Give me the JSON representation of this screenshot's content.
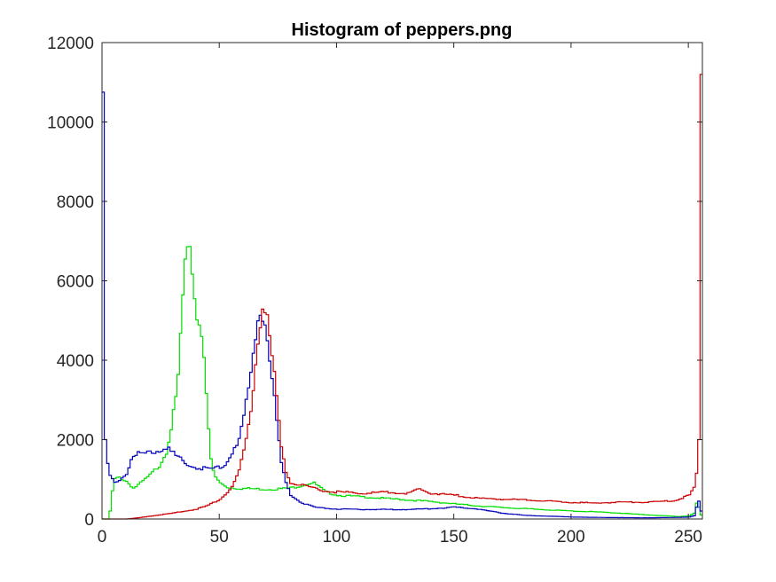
{
  "chart_data": {
    "type": "line",
    "title": "Histogram of peppers.png",
    "xlabel": "",
    "ylabel": "",
    "xlim": [
      0,
      256
    ],
    "ylim": [
      0,
      12000
    ],
    "x_ticks": [
      0,
      50,
      100,
      150,
      200,
      250
    ],
    "y_ticks": [
      0,
      2000,
      4000,
      6000,
      8000,
      10000,
      12000
    ],
    "x_tick_labels": [
      "0",
      "50",
      "100",
      "150",
      "200",
      "250"
    ],
    "y_tick_labels": [
      "0",
      "2000",
      "4000",
      "6000",
      "8000",
      "10000",
      "12000"
    ],
    "grid": false,
    "legend": "none",
    "series": [
      {
        "color": "#00dd00",
        "x": [
          0,
          2,
          3,
          4,
          5,
          7,
          10,
          13,
          16,
          20,
          24,
          27,
          29,
          31,
          32,
          33,
          34,
          35,
          36,
          37,
          38,
          39,
          40,
          41,
          42,
          43,
          44,
          45,
          46,
          47,
          48,
          50,
          53,
          56,
          60,
          65,
          70,
          75,
          80,
          85,
          88,
          90,
          92,
          95,
          100,
          110,
          120,
          130,
          140,
          150,
          160,
          170,
          180,
          190,
          200,
          210,
          220,
          230,
          240,
          245,
          250,
          252,
          253,
          254,
          255
        ],
        "y": [
          0,
          0,
          200,
          700,
          1000,
          1050,
          950,
          780,
          900,
          1100,
          1350,
          1700,
          2300,
          3000,
          3600,
          4600,
          5600,
          6400,
          6600,
          6620,
          6300,
          5600,
          5100,
          4900,
          4700,
          4200,
          3200,
          2200,
          1500,
          1200,
          1050,
          900,
          800,
          780,
          770,
          760,
          750,
          760,
          780,
          850,
          900,
          900,
          820,
          680,
          600,
          560,
          520,
          480,
          440,
          380,
          330,
          290,
          260,
          230,
          200,
          180,
          150,
          110,
          80,
          60,
          80,
          150,
          400,
          300,
          100
        ]
      },
      {
        "color": "#0000bb",
        "x": [
          0,
          1,
          2,
          3,
          5,
          7,
          10,
          12,
          15,
          20,
          25,
          27,
          30,
          35,
          40,
          45,
          50,
          52,
          55,
          58,
          60,
          62,
          63,
          64,
          65,
          66,
          67,
          68,
          69,
          70,
          71,
          72,
          73,
          74,
          75,
          76,
          78,
          80,
          85,
          90,
          95,
          100,
          110,
          120,
          130,
          140,
          150,
          160,
          170,
          180,
          190,
          200,
          210,
          220,
          230,
          240,
          250,
          252,
          253,
          254,
          255
        ],
        "y": [
          10750,
          2000,
          1400,
          1100,
          900,
          1000,
          1150,
          1500,
          1650,
          1650,
          1750,
          1800,
          1650,
          1400,
          1300,
          1250,
          1300,
          1400,
          1700,
          2000,
          2600,
          3200,
          3600,
          4100,
          4600,
          5000,
          5200,
          5100,
          4900,
          4500,
          4000,
          3500,
          3000,
          2400,
          1900,
          1400,
          900,
          600,
          400,
          300,
          270,
          250,
          240,
          240,
          240,
          260,
          300,
          250,
          150,
          90,
          70,
          50,
          40,
          35,
          30,
          35,
          50,
          80,
          300,
          450,
          200
        ]
      },
      {
        "color": "#cc0000",
        "x": [
          0,
          10,
          15,
          20,
          25,
          30,
          35,
          40,
          45,
          50,
          55,
          58,
          60,
          62,
          63,
          64,
          65,
          66,
          67,
          68,
          69,
          70,
          71,
          72,
          73,
          74,
          75,
          76,
          78,
          80,
          85,
          90,
          95,
          100,
          110,
          120,
          130,
          135,
          140,
          150,
          160,
          170,
          180,
          190,
          200,
          210,
          220,
          230,
          240,
          245,
          250,
          252,
          253,
          254,
          255
        ],
        "y": [
          0,
          0,
          30,
          70,
          110,
          150,
          200,
          250,
          350,
          500,
          800,
          1200,
          1700,
          2300,
          2800,
          3300,
          3900,
          4500,
          5000,
          5400,
          5350,
          5000,
          4600,
          4100,
          3600,
          3000,
          2400,
          1800,
          1200,
          900,
          850,
          780,
          700,
          680,
          650,
          680,
          650,
          750,
          650,
          600,
          520,
          500,
          480,
          450,
          420,
          400,
          430,
          420,
          450,
          480,
          600,
          800,
          1150,
          2000,
          11200
        ]
      }
    ]
  }
}
